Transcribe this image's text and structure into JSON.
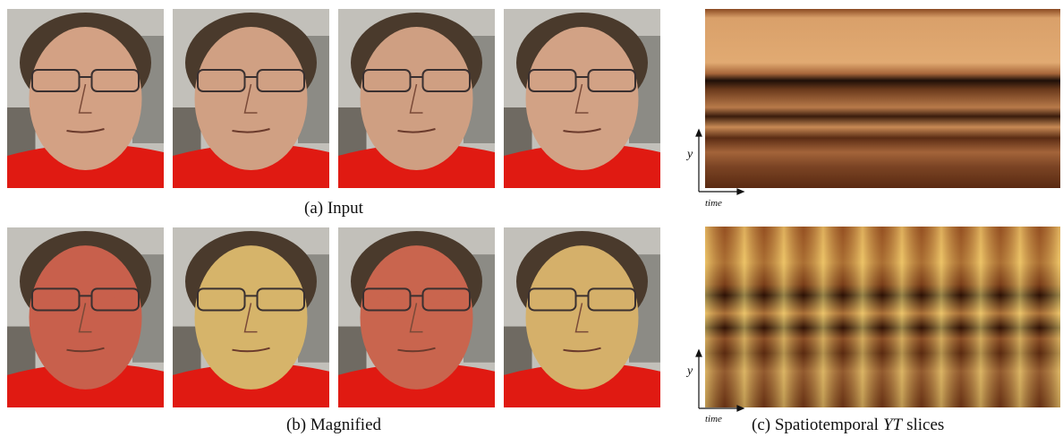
{
  "figure": {
    "rows": [
      {
        "caption": "(a) Input"
      },
      {
        "caption": "(b) Magnified"
      }
    ],
    "slices": {
      "axis_y": "y",
      "axis_time": "time",
      "caption": {
        "prefix": "(c) Spatiotemporal",
        "italic": "YT",
        "suffix": "slices"
      }
    }
  }
}
